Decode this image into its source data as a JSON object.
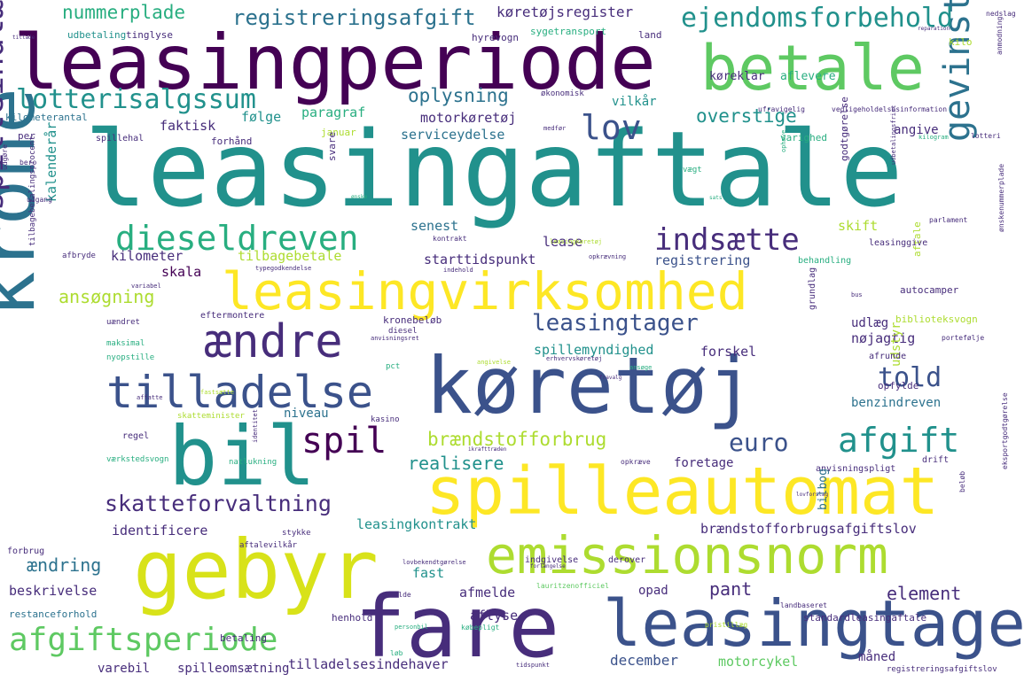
{
  "colors": {
    "dark_purple": "#440154",
    "purple": "#472d7b",
    "indigo": "#3b528b",
    "blue": "#2c728e",
    "teal": "#21918c",
    "green_teal": "#28ae80",
    "green": "#5ec962",
    "lime": "#addc30",
    "yellow": "#fde725"
  },
  "words": [
    "leasingaftale",
    "leasingperiode",
    "betale",
    "køretøj",
    "gebyr",
    "fare",
    "spilleautomat",
    "leasingtage",
    "krone",
    "bil",
    "leasingvirksomhed",
    "emissionsnorm",
    "tilladelse",
    "ændre",
    "dieseldreven",
    "indsætte",
    "gevinstgive",
    "spilleindtægt",
    "afgiftsperiode",
    "afgift",
    "skatteforvaltning",
    "lotterisalgssum",
    "registreringsafgift",
    "ejendomsforbehold",
    "nummerplade",
    "køretøjsregister",
    "lov",
    "spil",
    "told",
    "euro",
    "leasingtager",
    "brændstofforbrug",
    "realisere",
    "overstige",
    "oplysning",
    "paragraf",
    "motorkøretøj",
    "serviceydelse",
    "følge",
    "faktisk",
    "kalenderår",
    "ansøgning",
    "kilometer",
    "skala",
    "tilbagebetale",
    "starttidspunkt",
    "registrering",
    "senest",
    "lease",
    "skift",
    "angive",
    "vilkår",
    "køreklar",
    "aflevere",
    "sygetransport",
    "hyrevogn",
    "tinglyse",
    "udbetaling",
    "land",
    "kilo",
    "identificere",
    "leasingkontrakt",
    "brændstofforbrugsafgiftslov",
    "ændring",
    "beskrivelse",
    "fast",
    "afmelde",
    "aflyse",
    "pant",
    "element",
    "december",
    "motorcykel",
    "måned",
    "varebil",
    "spilleomsætning",
    "tilladelsesindehaver",
    "betaling",
    "henhold",
    "restanceforhold",
    "standardleasingaftale",
    "opad",
    "foretage",
    "benzindreven",
    "forskel",
    "nøjagtig",
    "udlæg",
    "biblioteksvogn",
    "opfylde",
    "spillemyndighed",
    "kronebeløb",
    "niveau",
    "udstyr",
    "kilometerantal",
    "per",
    "spillehal",
    "forhånd",
    "januar",
    "svare",
    "varighed",
    "godtgørelse",
    "aftale",
    "leasinggive",
    "behandling",
    "autocamper",
    "drift",
    "anvisningspligt",
    "bilbog",
    "indgivelse",
    "derover",
    "regel",
    "afrunde",
    "grundlag",
    "eftermontere",
    "uændret",
    "maksimal",
    "nyopstille",
    "diesel",
    "pct",
    "skatteminister",
    "afbryde",
    "forbrug",
    "aftalevilkår",
    "stykke",
    "natlukning",
    "værkstedsvogn",
    "kasino",
    "tilbagebetalingsprocent",
    "udgang",
    "bero",
    "udgøre",
    "økonomisk",
    "ufravigelig",
    "vedligeholdelsesinformation",
    "lotteri",
    "anmodning",
    "nedslag",
    "kontrakt",
    "parlament",
    "ønskenummerplade",
    "portefølje",
    "personbil",
    "lauritzenofficiel",
    "landbaseret",
    "pristillæg",
    "registreringsafgiftslov",
    "købepligt",
    "tidspunkt",
    "opkræve",
    "beløb",
    "eksportgodtgørelse",
    "identitet",
    "fastsætte",
    "affatte",
    "medfør",
    "vægt",
    "opkrævning",
    "angivelse",
    "erhvervskøretøj",
    "ophæve",
    "udbetalingsfrist",
    "kilogram",
    "leasingkøretøj",
    "typegodkendelse",
    "anvisningsret",
    "lovbekendtgørelse",
    "forlængelse",
    "løb",
    "anmelde",
    "ikrafttræden",
    "reparation",
    "ansøge",
    "indehold",
    "variabel",
    "bus",
    "tillade",
    "fravalg",
    "ønske",
    "sats",
    "lovforslag"
  ]
}
